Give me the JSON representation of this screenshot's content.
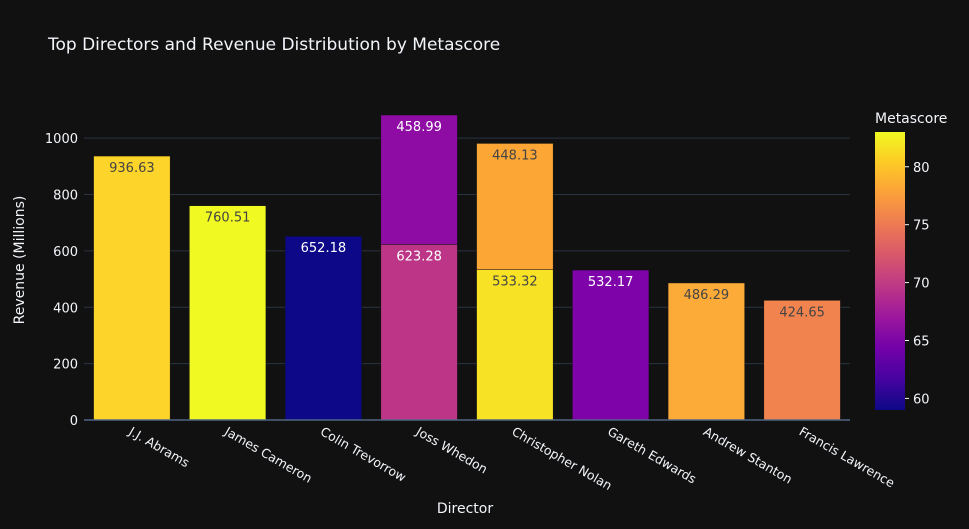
{
  "chart_data": {
    "type": "bar",
    "barmode": "stack",
    "title": "Top Directors and Revenue Distribution by Metascore",
    "xlabel": "Director",
    "ylabel": "Revenue (Millions)",
    "ylim": [
      0,
      1100
    ],
    "yticks": [
      0,
      200,
      400,
      600,
      800,
      1000
    ],
    "grid": true,
    "categories": [
      "J.J. Abrams",
      "James Cameron",
      "Colin Trevorrow",
      "Joss Whedon",
      "Christopher Nolan",
      "Gareth Edwards",
      "Andrew Stanton",
      "Francis Lawrence"
    ],
    "segments": [
      {
        "director": "J.J. Abrams",
        "value": 936.63,
        "label": "936.63",
        "metascore": 81,
        "color": "#fdd42a"
      },
      {
        "director": "James Cameron",
        "value": 760.51,
        "label": "760.51",
        "metascore": 83,
        "color": "#f0f921"
      },
      {
        "director": "Colin Trevorrow",
        "value": 652.18,
        "label": "652.18",
        "metascore": 59,
        "color": "#0d0887"
      },
      {
        "director": "Joss Whedon",
        "value": 623.28,
        "label": "623.28",
        "metascore": 69,
        "color": "#bc3587"
      },
      {
        "director": "Joss Whedon",
        "value": 458.99,
        "label": "458.99",
        "metascore": 66,
        "color": "#8e0ca4"
      },
      {
        "director": "Christopher Nolan",
        "value": 533.32,
        "label": "533.32",
        "metascore": 82,
        "color": "#f7e225"
      },
      {
        "director": "Christopher Nolan",
        "value": 448.13,
        "label": "448.13",
        "metascore": 78,
        "color": "#fca636"
      },
      {
        "director": "Gareth Edwards",
        "value": 532.17,
        "label": "532.17",
        "metascore": 64,
        "color": "#7e03a8"
      },
      {
        "director": "Andrew Stanton",
        "value": 486.29,
        "label": "486.29",
        "metascore": 77,
        "color": "#fdab38"
      },
      {
        "director": "Francis Lawrence",
        "value": 424.65,
        "label": "424.65",
        "metascore": 75,
        "color": "#f0834e"
      }
    ],
    "colorbar": {
      "title": "Metascore",
      "range": [
        59,
        83
      ],
      "ticks": [
        60,
        65,
        70,
        75,
        80
      ],
      "colorscale": [
        "#0d0887",
        "#46039f",
        "#7201a8",
        "#9c179e",
        "#bd3786",
        "#d8576b",
        "#ed7953",
        "#fb9f3a",
        "#fdca26",
        "#f0f921"
      ]
    }
  }
}
